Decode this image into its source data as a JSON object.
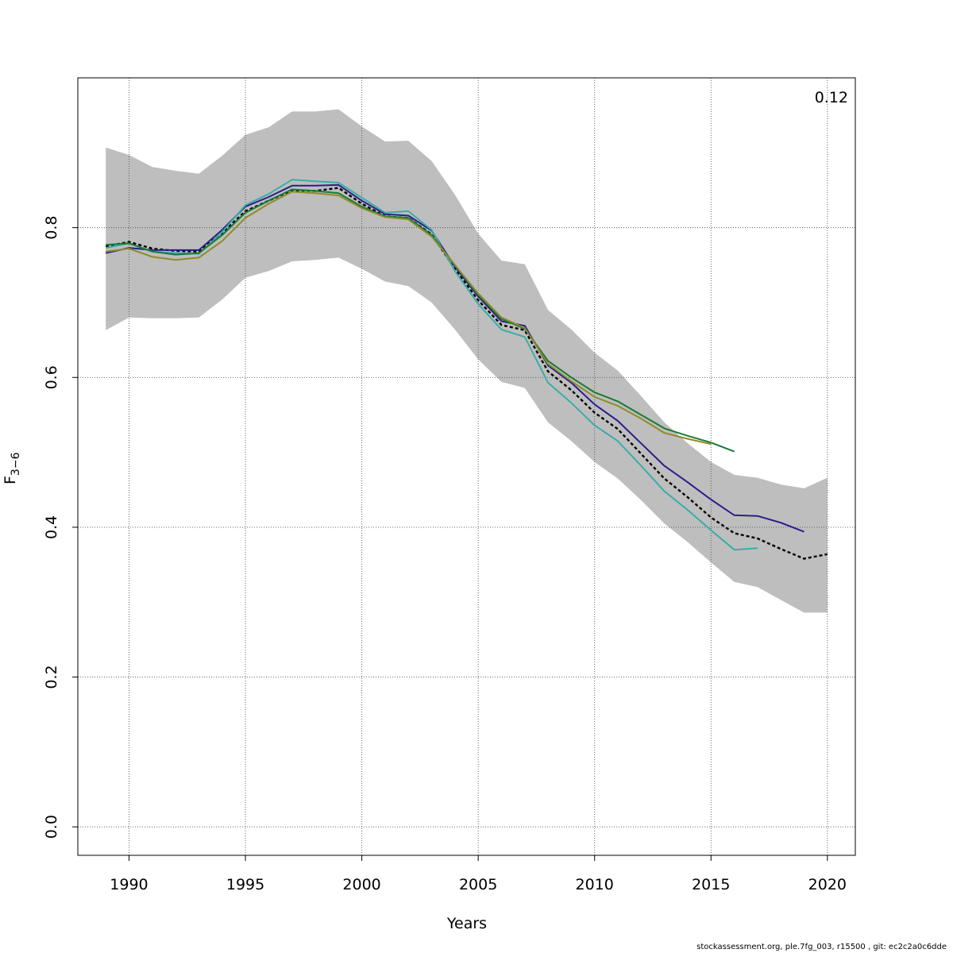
{
  "chart_data": {
    "type": "line",
    "title": "",
    "xlabel": "Years",
    "ylabel": {
      "base": "F",
      "subscript": "3−6"
    },
    "corner_label": "0.12",
    "xlim": [
      1987.8,
      2021.2
    ],
    "ylim": [
      -0.038,
      1.0
    ],
    "x_ticks": [
      1990,
      1995,
      2000,
      2005,
      2010,
      2015,
      2020
    ],
    "y_ticks": [
      0.0,
      0.2,
      0.4,
      0.6,
      0.8
    ],
    "y_tick_labels": [
      "0.0",
      "0.2",
      "0.4",
      "0.6",
      "0.8"
    ],
    "grid": true,
    "legend": "none",
    "confidence_band": {
      "color": "#bebebe",
      "x": [
        1989,
        1990,
        1991,
        1992,
        1993,
        1994,
        1995,
        1996,
        1997,
        1998,
        1999,
        2000,
        2001,
        2002,
        2003,
        2004,
        2005,
        2006,
        2007,
        2008,
        2009,
        2010,
        2011,
        2012,
        2013,
        2014,
        2015,
        2016,
        2017,
        2018,
        2019,
        2020
      ],
      "lower": [
        0.663,
        0.68,
        0.679,
        0.679,
        0.68,
        0.704,
        0.733,
        0.742,
        0.755,
        0.757,
        0.76,
        0.745,
        0.728,
        0.722,
        0.7,
        0.664,
        0.624,
        0.594,
        0.586,
        0.54,
        0.515,
        0.487,
        0.465,
        0.436,
        0.405,
        0.38,
        0.353,
        0.327,
        0.32,
        0.303,
        0.286,
        0.286
      ],
      "upper": [
        0.907,
        0.897,
        0.881,
        0.876,
        0.872,
        0.896,
        0.924,
        0.934,
        0.955,
        0.955,
        0.958,
        0.935,
        0.915,
        0.916,
        0.889,
        0.844,
        0.792,
        0.756,
        0.751,
        0.69,
        0.664,
        0.633,
        0.609,
        0.575,
        0.54,
        0.512,
        0.487,
        0.47,
        0.466,
        0.457,
        0.452,
        0.466
      ]
    },
    "series": [
      {
        "color": "#000000",
        "dashed": true,
        "width": 2.4,
        "x": [
          1989,
          1990,
          1991,
          1992,
          1993,
          1994,
          1995,
          1996,
          1997,
          1998,
          1999,
          2000,
          2001,
          2002,
          2003,
          2004,
          2005,
          2006,
          2007,
          2008,
          2009,
          2010,
          2011,
          2012,
          2013,
          2014,
          2015,
          2016,
          2017,
          2018,
          2019,
          2020
        ],
        "values": [
          0.775,
          0.781,
          0.772,
          0.769,
          0.768,
          0.793,
          0.822,
          0.836,
          0.85,
          0.849,
          0.853,
          0.832,
          0.815,
          0.813,
          0.791,
          0.745,
          0.703,
          0.67,
          0.663,
          0.608,
          0.583,
          0.553,
          0.531,
          0.498,
          0.465,
          0.44,
          0.413,
          0.392,
          0.385,
          0.371,
          0.358,
          0.364
        ]
      },
      {
        "color": "#2a1e8c",
        "dashed": false,
        "width": 2.0,
        "x": [
          1989,
          1990,
          1991,
          1992,
          1993,
          1994,
          1995,
          1996,
          1997,
          1998,
          1999,
          2000,
          2001,
          2002,
          2003,
          2004,
          2005,
          2006,
          2007,
          2008,
          2009,
          2010,
          2011,
          2012,
          2013,
          2014,
          2015,
          2016,
          2017,
          2018,
          2019
        ],
        "values": [
          0.766,
          0.773,
          0.77,
          0.77,
          0.77,
          0.797,
          0.828,
          0.841,
          0.856,
          0.856,
          0.857,
          0.836,
          0.818,
          0.816,
          0.796,
          0.748,
          0.708,
          0.675,
          0.669,
          0.616,
          0.593,
          0.564,
          0.542,
          0.512,
          0.482,
          0.46,
          0.437,
          0.416,
          0.415,
          0.406,
          0.394
        ]
      },
      {
        "color": "#3aada8",
        "dashed": false,
        "width": 2.0,
        "x": [
          1989,
          1990,
          1991,
          1992,
          1993,
          1994,
          1995,
          1996,
          1997,
          1998,
          1999,
          2000,
          2001,
          2002,
          2003,
          2004,
          2005,
          2006,
          2007,
          2008,
          2009,
          2010,
          2011,
          2012,
          2013,
          2014,
          2015,
          2016,
          2017
        ],
        "values": [
          0.773,
          0.779,
          0.768,
          0.766,
          0.765,
          0.794,
          0.83,
          0.845,
          0.864,
          0.862,
          0.86,
          0.84,
          0.82,
          0.822,
          0.797,
          0.742,
          0.698,
          0.664,
          0.654,
          0.593,
          0.566,
          0.536,
          0.515,
          0.482,
          0.448,
          0.423,
          0.396,
          0.37,
          0.372
        ]
      },
      {
        "color": "#1a7a34",
        "dashed": false,
        "width": 2.0,
        "x": [
          1989,
          1990,
          1991,
          1992,
          1993,
          1994,
          1995,
          1996,
          1997,
          1998,
          1999,
          2000,
          2001,
          2002,
          2003,
          2004,
          2005,
          2006,
          2007,
          2008,
          2009,
          2010,
          2011,
          2012,
          2013,
          2014,
          2015,
          2016
        ],
        "values": [
          0.777,
          0.779,
          0.768,
          0.764,
          0.766,
          0.79,
          0.82,
          0.836,
          0.851,
          0.849,
          0.846,
          0.828,
          0.815,
          0.813,
          0.79,
          0.75,
          0.71,
          0.678,
          0.665,
          0.622,
          0.6,
          0.58,
          0.568,
          0.55,
          0.532,
          0.522,
          0.513,
          0.501
        ]
      },
      {
        "color": "#8c8c2a",
        "dashed": false,
        "width": 2.0,
        "x": [
          1989,
          1990,
          1991,
          1992,
          1993,
          1994,
          1995,
          1996,
          1997,
          1998,
          1999,
          2000,
          2001,
          2002,
          2003,
          2004,
          2005,
          2006,
          2007,
          2008,
          2009,
          2010,
          2011,
          2012,
          2013,
          2014,
          2015
        ],
        "values": [
          0.768,
          0.772,
          0.761,
          0.757,
          0.76,
          0.782,
          0.813,
          0.832,
          0.848,
          0.846,
          0.843,
          0.826,
          0.814,
          0.811,
          0.788,
          0.75,
          0.712,
          0.68,
          0.666,
          0.618,
          0.595,
          0.574,
          0.562,
          0.545,
          0.526,
          0.518,
          0.511
        ]
      }
    ]
  },
  "footer": "stockassessment.org, ple.7fg_003, r15500 , git: ec2c2a0c6dde"
}
